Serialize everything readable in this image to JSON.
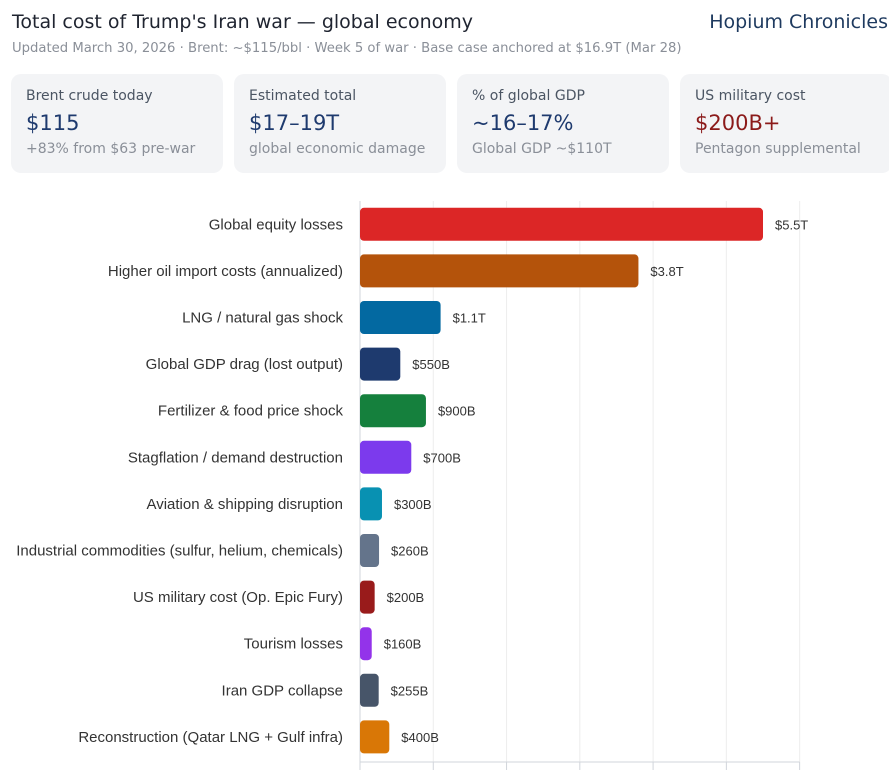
{
  "header": {
    "title": "Total cost of Trump's Iran war — global economy",
    "brand": "Hopium Chronicles",
    "subtitle": "Updated March 30, 2026 · Brent: ~$115/bbl · Week 5 of war · Base case anchored at $16.9T (Mar 28)"
  },
  "cards": [
    {
      "label": "Brent crude today",
      "value": "$115",
      "sub": "+83% from $63 pre-war",
      "color": "#1e3a6e"
    },
    {
      "label": "Estimated total",
      "value": "$17–19T",
      "sub": "global economic damage",
      "color": "#1e3a6e"
    },
    {
      "label": "% of global GDP",
      "value": "~16–17%",
      "sub": "Global GDP ~$110T",
      "color": "#1e3a6e"
    },
    {
      "label": "US military cost",
      "value": "$200B+",
      "sub": "Pentagon supplemental",
      "color": "#8b1a1a"
    }
  ],
  "chart_data": {
    "type": "bar",
    "orientation": "horizontal",
    "unit": "billions USD",
    "xlim": [
      0,
      6000
    ],
    "grid": true,
    "categories": [
      "Global equity losses",
      "Higher oil import costs (annualized)",
      "LNG / natural gas shock",
      "Global GDP drag (lost output)",
      "Fertilizer & food price shock",
      "Stagflation / demand destruction",
      "Aviation & shipping disruption",
      "Industrial commodities (sulfur, helium, chemicals)",
      "US military cost (Op. Epic Fury)",
      "Tourism losses",
      "Iran GDP collapse",
      "Reconstruction (Qatar LNG + Gulf infra)"
    ],
    "values": [
      5500,
      3800,
      1100,
      550,
      900,
      700,
      300,
      260,
      200,
      160,
      255,
      400
    ],
    "labels": [
      "$5.5T",
      "$3.8T",
      "$1.1T",
      "$550B",
      "$900B",
      "$700B",
      "$300B",
      "$260B",
      "$200B",
      "$160B",
      "$255B",
      "$400B"
    ],
    "colors": [
      "#dc2626",
      "#b4530b",
      "#0369a1",
      "#1e3a6e",
      "#15803d",
      "#7c3aed",
      "#0891b2",
      "#64748b",
      "#991b1b",
      "#9333ea",
      "#475569",
      "#d97706"
    ]
  }
}
